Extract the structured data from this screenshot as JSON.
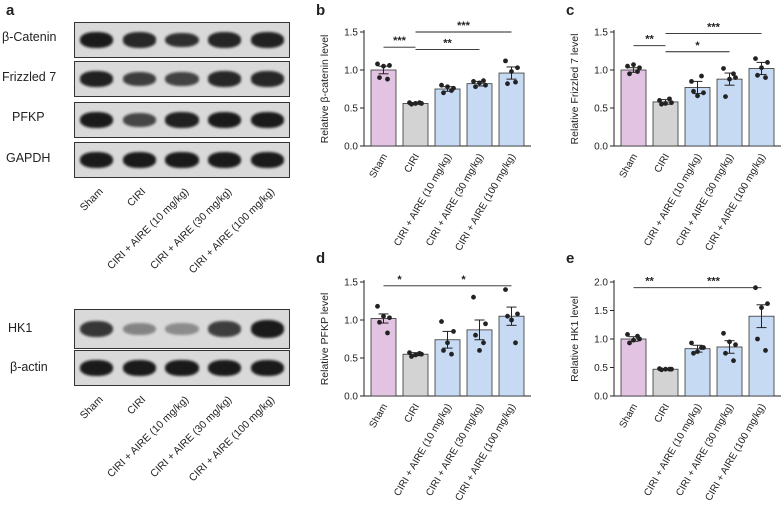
{
  "panel_a": {
    "letter": "a",
    "lane_labels": [
      "Sham",
      "CIRI",
      "CIRI + AIRE (10 mg/kg)",
      "CIRI + AIRE (30 mg/kg)",
      "CIRI + AIRE (100 mg/kg)"
    ],
    "group1": {
      "blots": [
        {
          "label": "β-Catenin",
          "intensity": [
            1.0,
            0.9,
            0.85,
            0.92,
            0.95
          ]
        },
        {
          "label": "Frizzled 7",
          "intensity": [
            0.95,
            0.75,
            0.72,
            0.9,
            0.9
          ]
        },
        {
          "label": "PFKP",
          "intensity": [
            1.0,
            0.7,
            0.95,
            1.0,
            1.0
          ]
        },
        {
          "label": "GAPDH",
          "intensity": [
            1.0,
            1.0,
            1.0,
            1.0,
            1.0
          ]
        }
      ]
    },
    "group2": {
      "blots": [
        {
          "label": "HK1",
          "intensity": [
            0.8,
            0.25,
            0.2,
            0.75,
            1.0
          ]
        },
        {
          "label": "β-actin",
          "intensity": [
            1.0,
            1.0,
            1.0,
            1.0,
            1.0
          ]
        }
      ]
    }
  },
  "chart_data": [
    {
      "type": "bar",
      "panel": "b",
      "ylabel": "Relative β-catenin level",
      "categories": [
        "Sham",
        "CIRI",
        "CIRI + AIRE (10 mg/kg)",
        "CIRI + AIRE (30 mg/kg)",
        "CIRI + AIRE (100 mg/kg)"
      ],
      "values": [
        1.0,
        0.56,
        0.75,
        0.82,
        0.96
      ],
      "errors": [
        0.05,
        0.01,
        0.03,
        0.03,
        0.08
      ],
      "points": [
        [
          1.08,
          1.06,
          0.9,
          0.88,
          1.05
        ],
        [
          0.57,
          0.56,
          0.55,
          0.57,
          0.56
        ],
        [
          0.8,
          0.76,
          0.7,
          0.73,
          0.78
        ],
        [
          0.85,
          0.8,
          0.78,
          0.86,
          0.83
        ],
        [
          1.12,
          1.03,
          0.82,
          0.84,
          0.98
        ]
      ],
      "ylim": [
        0,
        1.5
      ],
      "yticks": [
        0.0,
        0.5,
        1.0,
        1.5
      ],
      "tick_labels": [
        "0.0",
        "0.5",
        "1.0",
        "1.5"
      ],
      "significance": [
        {
          "from": 0,
          "to": 1,
          "label": "***",
          "level": 1.3
        },
        {
          "from": 1,
          "to": 3,
          "label": "**",
          "level": 1.27
        },
        {
          "from": 1,
          "to": 4,
          "label": "***",
          "level": 1.5
        }
      ]
    },
    {
      "type": "bar",
      "panel": "c",
      "ylabel": "Relative Frizzled 7 level",
      "categories": [
        "Sham",
        "CIRI",
        "CIRI + AIRE (10 mg/kg)",
        "CIRI + AIRE (30 mg/kg)",
        "CIRI + AIRE (100 mg/kg)"
      ],
      "values": [
        1.0,
        0.58,
        0.77,
        0.88,
        1.02
      ],
      "errors": [
        0.03,
        0.03,
        0.08,
        0.08,
        0.08
      ],
      "points": [
        [
          1.05,
          1.03,
          0.95,
          0.98,
          1.07
        ],
        [
          0.6,
          0.57,
          0.55,
          0.62,
          0.56
        ],
        [
          0.85,
          0.7,
          0.72,
          0.92,
          0.66
        ],
        [
          1.02,
          0.9,
          0.65,
          0.95,
          0.88
        ],
        [
          1.15,
          1.1,
          0.93,
          0.9,
          1.03
        ]
      ],
      "ylim": [
        0,
        1.5
      ],
      "yticks": [
        0.0,
        0.5,
        1.0,
        1.5
      ],
      "tick_labels": [
        "0.0",
        "0.5",
        "1.0",
        "1.5"
      ],
      "significance": [
        {
          "from": 0,
          "to": 1,
          "label": "**",
          "level": 1.32
        },
        {
          "from": 1,
          "to": 3,
          "label": "*",
          "level": 1.24
        },
        {
          "from": 1,
          "to": 4,
          "label": "***",
          "level": 1.48
        }
      ]
    },
    {
      "type": "bar",
      "panel": "d",
      "ylabel": "Relative PFKP level",
      "categories": [
        "Sham",
        "CIRI",
        "CIRI + AIRE (10 mg/kg)",
        "CIRI + AIRE (30 mg/kg)",
        "CIRI + AIRE (100 mg/kg)"
      ],
      "values": [
        1.02,
        0.55,
        0.74,
        0.87,
        1.05
      ],
      "errors": [
        0.06,
        0.02,
        0.11,
        0.13,
        0.12
      ],
      "points": [
        [
          1.18,
          1.03,
          0.97,
          0.83,
          1.05
        ],
        [
          0.57,
          0.55,
          0.52,
          0.56,
          0.54
        ],
        [
          0.98,
          0.85,
          0.6,
          0.55,
          0.7
        ],
        [
          1.3,
          0.95,
          0.8,
          0.7,
          0.6
        ],
        [
          1.4,
          1.08,
          1.05,
          0.7,
          1.0
        ]
      ],
      "ylim": [
        0,
        1.5
      ],
      "yticks": [
        0.0,
        0.5,
        1.0,
        1.5
      ],
      "tick_labels": [
        "0.0",
        "0.5",
        "1.0",
        "1.5"
      ],
      "significance": [
        {
          "from": 0,
          "to": 1,
          "label": "*",
          "level": 1.45
        },
        {
          "from": 1,
          "to": 4,
          "label": "*",
          "level": 1.45
        }
      ]
    },
    {
      "type": "bar",
      "panel": "e",
      "ylabel": "Relative HK1 level",
      "categories": [
        "Sham",
        "CIRI",
        "CIRI + AIRE (10 mg/kg)",
        "CIRI + AIRE (30 mg/kg)",
        "CIRI + AIRE (100 mg/kg)"
      ],
      "values": [
        1.0,
        0.47,
        0.83,
        0.86,
        1.4
      ],
      "errors": [
        0.04,
        0.01,
        0.06,
        0.11,
        0.2
      ],
      "points": [
        [
          1.08,
          1.0,
          0.93,
          1.05,
          0.98
        ],
        [
          0.48,
          0.47,
          0.46,
          0.47,
          0.47
        ],
        [
          0.93,
          0.85,
          0.75,
          0.85,
          0.78
        ],
        [
          1.1,
          0.9,
          0.75,
          0.62,
          0.95
        ],
        [
          1.9,
          1.62,
          1.0,
          0.8,
          1.55
        ]
      ],
      "ylim": [
        0,
        2.0
      ],
      "yticks": [
        0.0,
        0.5,
        1.0,
        1.5,
        2.0
      ],
      "tick_labels": [
        "0.0",
        "0.5",
        "1.0",
        "1.5",
        "2.0"
      ],
      "significance": [
        {
          "from": 0,
          "to": 1,
          "label": "**",
          "level": 1.9
        },
        {
          "from": 1,
          "to": 4,
          "label": "***",
          "level": 1.9
        }
      ]
    }
  ],
  "colors": {
    "bars": [
      "#e2c4e2",
      "#d3d3d3",
      "#c6daf3",
      "#c6daf3",
      "#c6daf3"
    ],
    "bar_stroke": "#333333",
    "points": "#222222",
    "band": "#1a1a1a"
  },
  "letters": {
    "b": "b",
    "c": "c",
    "d": "d",
    "e": "e"
  }
}
